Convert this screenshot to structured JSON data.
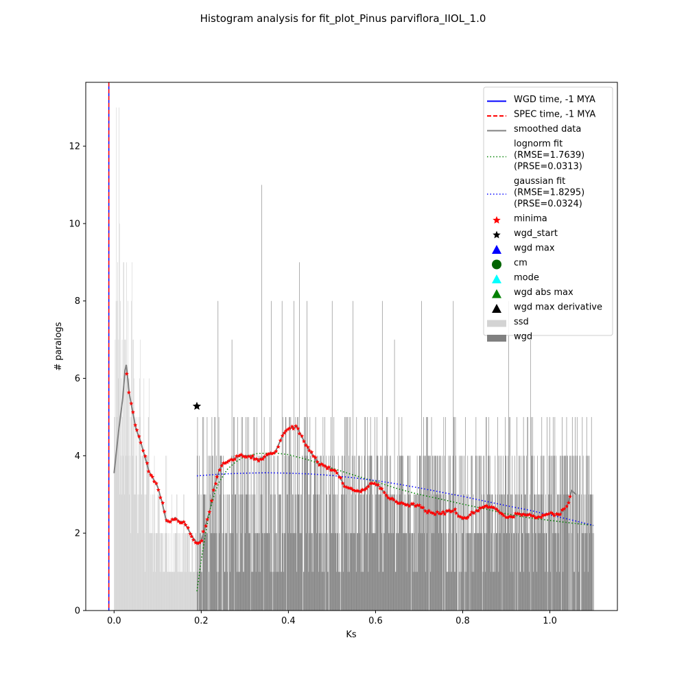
{
  "chart_data": {
    "type": "bar",
    "title": "Histogram analysis for fit_plot_Pinus parviflora_IIOL_1.0",
    "xlabel": "Ks",
    "ylabel": "# paralogs",
    "xlim": [
      -0.065,
      1.155
    ],
    "ylim": [
      0,
      13.65
    ],
    "xticks": [
      "0.0",
      "0.2",
      "0.4",
      "0.6",
      "0.8",
      "1.0"
    ],
    "xtick_values": [
      0,
      0.2,
      0.4,
      0.6,
      0.8,
      1.0
    ],
    "yticks": [
      "0",
      "2",
      "4",
      "6",
      "8",
      "10",
      "12"
    ],
    "ytick_values": [
      0,
      2,
      4,
      6,
      8,
      10,
      12
    ],
    "grid": false,
    "legend_position": "top-right",
    "colors": {
      "ssd": "#d3d3d3",
      "wgd": "#808080",
      "smoothed": "#808080",
      "wgd_time": "#0000ff",
      "spec_time": "#ff0000",
      "lognorm": "#008000",
      "gaussian": "#0000ff",
      "minima": "#ff0000",
      "wgd_start": "#000000"
    },
    "vertical_lines": {
      "wgd_time_ks": -0.012,
      "spec_time_ks": -0.012
    },
    "ssd_histogram": {
      "range": [
        0.0,
        0.19
      ],
      "bin_width": 0.001,
      "representative_heights": [
        [
          0.002,
          7
        ],
        [
          0.005,
          13
        ],
        [
          0.008,
          9
        ],
        [
          0.011,
          13
        ],
        [
          0.014,
          8
        ],
        [
          0.018,
          7
        ],
        [
          0.021,
          9
        ],
        [
          0.025,
          7
        ],
        [
          0.028,
          9
        ],
        [
          0.031,
          8
        ],
        [
          0.034,
          6
        ],
        [
          0.037,
          5
        ],
        [
          0.041,
          9
        ],
        [
          0.044,
          7
        ],
        [
          0.048,
          5
        ],
        [
          0.052,
          5
        ],
        [
          0.056,
          5
        ],
        [
          0.06,
          7
        ],
        [
          0.064,
          4
        ],
        [
          0.068,
          6
        ],
        [
          0.072,
          3
        ],
        [
          0.076,
          4
        ],
        [
          0.08,
          6
        ],
        [
          0.084,
          3
        ],
        [
          0.088,
          3
        ],
        [
          0.092,
          4
        ],
        [
          0.096,
          2
        ],
        [
          0.1,
          3
        ],
        [
          0.104,
          3
        ],
        [
          0.108,
          2
        ],
        [
          0.112,
          2
        ],
        [
          0.116,
          2
        ],
        [
          0.12,
          4
        ],
        [
          0.124,
          2
        ],
        [
          0.128,
          2
        ],
        [
          0.132,
          3
        ],
        [
          0.136,
          2
        ],
        [
          0.14,
          2
        ],
        [
          0.144,
          3
        ],
        [
          0.148,
          2
        ],
        [
          0.152,
          2
        ],
        [
          0.156,
          2
        ],
        [
          0.16,
          3
        ],
        [
          0.164,
          2
        ],
        [
          0.168,
          2
        ],
        [
          0.172,
          2
        ],
        [
          0.176,
          1
        ],
        [
          0.18,
          2
        ],
        [
          0.184,
          1
        ],
        [
          0.188,
          2
        ]
      ]
    },
    "wgd_histogram": {
      "range": [
        0.19,
        1.1
      ],
      "bin_width": 0.001,
      "baseline_height_range": [
        1,
        5
      ],
      "tall_bars": [
        [
          0.238,
          8
        ],
        [
          0.27,
          7
        ],
        [
          0.338,
          11
        ],
        [
          0.36,
          8
        ],
        [
          0.385,
          8
        ],
        [
          0.412,
          8
        ],
        [
          0.425,
          9
        ],
        [
          0.442,
          8
        ],
        [
          0.5,
          8
        ],
        [
          0.548,
          8
        ],
        [
          0.615,
          8
        ],
        [
          0.643,
          7
        ],
        [
          0.705,
          8
        ],
        [
          0.778,
          8
        ],
        [
          0.905,
          8
        ],
        [
          0.955,
          7
        ]
      ]
    },
    "series": [
      {
        "name": "smoothed data",
        "style": "solid",
        "x": [
          0.0,
          0.01,
          0.02,
          0.025,
          0.028,
          0.035,
          0.04,
          0.05,
          0.06,
          0.07,
          0.08,
          0.09,
          0.1,
          0.11,
          0.12,
          0.13,
          0.14,
          0.15,
          0.16,
          0.17,
          0.18,
          0.19,
          0.2,
          0.21,
          0.22,
          0.23,
          0.24,
          0.25,
          0.27,
          0.29,
          0.31,
          0.33,
          0.35,
          0.37,
          0.39,
          0.4,
          0.42,
          0.43,
          0.45,
          0.47,
          0.49,
          0.51,
          0.53,
          0.55,
          0.57,
          0.59,
          0.61,
          0.63,
          0.65,
          0.67,
          0.7,
          0.72,
          0.75,
          0.78,
          0.8,
          0.82,
          0.85,
          0.88,
          0.9,
          0.93,
          0.95,
          0.97,
          1.0,
          1.02,
          1.04,
          1.05,
          1.06
        ],
        "y": [
          3.55,
          4.6,
          5.5,
          6.2,
          6.35,
          5.6,
          5.3,
          4.7,
          4.4,
          4.0,
          3.6,
          3.4,
          3.2,
          2.8,
          2.3,
          2.3,
          2.4,
          2.3,
          2.3,
          2.1,
          1.9,
          1.75,
          1.8,
          2.2,
          2.6,
          3.2,
          3.6,
          3.8,
          3.9,
          4.0,
          4.0,
          3.9,
          4.0,
          4.1,
          4.6,
          4.7,
          4.75,
          4.5,
          4.1,
          3.8,
          3.7,
          3.6,
          3.2,
          3.1,
          3.1,
          3.3,
          3.2,
          2.9,
          2.8,
          2.75,
          2.7,
          2.55,
          2.5,
          2.6,
          2.35,
          2.5,
          2.7,
          2.6,
          2.4,
          2.5,
          2.5,
          2.4,
          2.5,
          2.45,
          2.7,
          3.1,
          3.0
        ]
      },
      {
        "name": "lognorm fit\n(RMSE=1.7639)\n(PRSE=0.0313)",
        "style": "dotted",
        "x": [
          0.19,
          0.2,
          0.21,
          0.22,
          0.23,
          0.24,
          0.26,
          0.28,
          0.3,
          0.33,
          0.37,
          0.4,
          0.45,
          0.5,
          0.55,
          0.6,
          0.65,
          0.7,
          0.75,
          0.8,
          0.85,
          0.9,
          0.95,
          1.0,
          1.05,
          1.1
        ],
        "y": [
          0.5,
          1.3,
          2.0,
          2.6,
          3.0,
          3.3,
          3.65,
          3.85,
          3.98,
          4.06,
          4.07,
          4.03,
          3.88,
          3.68,
          3.5,
          3.33,
          3.15,
          3.0,
          2.88,
          2.75,
          2.63,
          2.5,
          2.4,
          2.33,
          2.26,
          2.2
        ]
      },
      {
        "name": "gaussian fit\n(RMSE=1.8295)\n(PRSE=0.0324)",
        "style": "dotted",
        "x": [
          0.19,
          0.25,
          0.3,
          0.35,
          0.4,
          0.45,
          0.5,
          0.55,
          0.6,
          0.65,
          0.7,
          0.75,
          0.8,
          0.85,
          0.9,
          0.95,
          1.0,
          1.05,
          1.1
        ],
        "y": [
          3.48,
          3.53,
          3.55,
          3.56,
          3.55,
          3.53,
          3.49,
          3.43,
          3.36,
          3.27,
          3.17,
          3.06,
          2.95,
          2.83,
          2.71,
          2.6,
          2.47,
          2.34,
          2.2
        ]
      }
    ],
    "markers": {
      "wgd_start": {
        "x": 0.19,
        "y": 5.28
      },
      "minima_x_range": [
        0.03,
        1.05
      ]
    },
    "legend": [
      {
        "label": "WGD time, -1 MYA",
        "kind": "line-solid",
        "color": "#0000ff"
      },
      {
        "label": "SPEC time, -1 MYA",
        "kind": "line-dashed",
        "color": "#ff0000"
      },
      {
        "label": "smoothed data",
        "kind": "line-solid",
        "color": "#808080"
      },
      {
        "label": "lognorm fit",
        "label2": "(RMSE=1.7639)",
        "label3": "(PRSE=0.0313)",
        "kind": "line-dotted",
        "color": "#008000"
      },
      {
        "label": "gaussian fit",
        "label2": "(RMSE=1.8295)",
        "label3": "(PRSE=0.0324)",
        "kind": "line-dotted",
        "color": "#0000ff"
      },
      {
        "label": "minima",
        "kind": "star",
        "color": "#ff0000"
      },
      {
        "label": "wgd_start",
        "kind": "star",
        "color": "#000000"
      },
      {
        "label": "wgd max",
        "kind": "triangle",
        "color": "#0000ff"
      },
      {
        "label": "cm",
        "kind": "circle",
        "color": "#006400"
      },
      {
        "label": "mode",
        "kind": "triangle",
        "color": "#00ffff"
      },
      {
        "label": "wgd abs max",
        "kind": "triangle",
        "color": "#008000"
      },
      {
        "label": "wgd max derivative",
        "kind": "triangle",
        "color": "#000000"
      },
      {
        "label": "ssd",
        "kind": "patch",
        "color": "#d3d3d3"
      },
      {
        "label": "wgd",
        "kind": "patch",
        "color": "#808080"
      }
    ]
  }
}
